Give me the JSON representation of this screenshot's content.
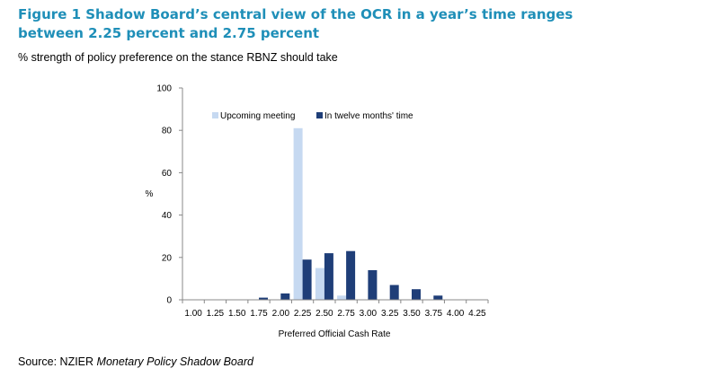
{
  "figure": {
    "title": "Figure 1 Shadow Board’s central view of the OCR in a year’s time ranges between 2.25 percent and 2.75 percent",
    "subtitle": "% strength of policy preference on the stance RBNZ should take",
    "source_prefix": "Source: NZIER ",
    "source_italic": "Monetary Policy Shadow Board"
  },
  "colors": {
    "title": "#1f8fb8",
    "upcoming": "#c6d9f1",
    "twelve_months": "#1f3e78",
    "axis": "#888888"
  },
  "chart_data": {
    "type": "bar",
    "title": "Figure 1 Shadow Board’s central view of the OCR in a year’s time ranges between 2.25 percent and 2.75 percent",
    "xlabel": "Preferred Official Cash Rate",
    "ylabel": "%",
    "ylim": [
      0,
      100
    ],
    "yticks": [
      0,
      20,
      40,
      60,
      80,
      100
    ],
    "grid": false,
    "legend_position": "top",
    "categories": [
      "1.00",
      "1.25",
      "1.50",
      "1.75",
      "2.00",
      "2.25",
      "2.50",
      "2.75",
      "3.00",
      "3.25",
      "3.50",
      "3.75",
      "4.00",
      "4.25"
    ],
    "series": [
      {
        "name": "Upcoming meeting",
        "values": [
          0,
          0,
          0,
          0,
          0,
          81,
          15,
          2,
          0,
          0,
          0,
          0,
          0,
          0
        ]
      },
      {
        "name": "In twelve months' time",
        "values": [
          0,
          0,
          0,
          1,
          3,
          19,
          22,
          23,
          14,
          7,
          5,
          2,
          0,
          0
        ]
      }
    ]
  }
}
